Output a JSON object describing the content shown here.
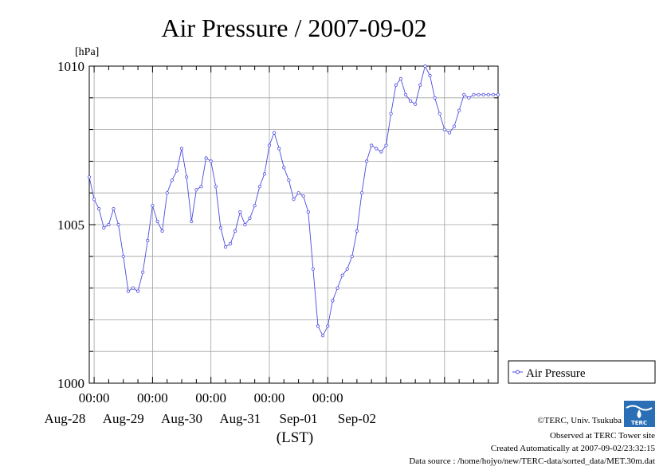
{
  "chart_data": {
    "type": "line",
    "title": "Air Pressure / 2007-09-02",
    "y_unit": "[hPa]",
    "xlabel": "(LST)",
    "ylim": [
      1000,
      1010
    ],
    "y_ticks": [
      {
        "value": 1000,
        "label": "1000"
      },
      {
        "value": 1005,
        "label": "1005"
      },
      {
        "value": 1010,
        "label": "1010"
      }
    ],
    "x_ticks": [
      "00:00",
      "00:00",
      "00:00",
      "00:00",
      "00:00"
    ],
    "x_day_labels": [
      "Aug-28",
      "Aug-29",
      "Aug-30",
      "Aug-31",
      "Sep-01",
      "Sep-02"
    ],
    "grid": true,
    "legend_position": "right",
    "series": [
      {
        "name": "Air Pressure",
        "color": "#4a4ae0",
        "x_hours_since_2007-08-27_00:00": [
          22,
          24,
          26,
          28,
          30,
          32,
          34,
          36,
          38,
          40,
          42,
          44,
          46,
          48,
          50,
          52,
          54,
          56,
          58,
          60,
          62,
          64,
          66,
          68,
          70,
          72,
          74,
          76,
          78,
          80,
          82,
          84,
          86,
          88,
          90,
          92,
          94,
          96,
          98,
          100,
          102,
          104,
          106,
          108,
          110,
          112,
          114,
          116,
          118,
          120,
          122,
          124,
          126,
          128,
          130,
          132,
          134,
          136,
          138,
          140,
          142,
          144,
          146,
          148,
          150,
          152,
          154,
          156,
          158,
          160,
          162,
          164,
          166,
          168,
          170,
          172,
          174,
          176,
          178,
          180,
          182,
          184,
          186,
          188,
          190
        ],
        "values": [
          1006.5,
          1005.8,
          1005.5,
          1004.9,
          1005.0,
          1005.5,
          1005.0,
          1004.0,
          1002.9,
          1003.0,
          1002.9,
          1003.5,
          1004.5,
          1005.6,
          1005.1,
          1004.8,
          1006.0,
          1006.4,
          1006.7,
          1007.4,
          1006.5,
          1005.1,
          1006.1,
          1006.2,
          1007.1,
          1007.0,
          1006.2,
          1004.9,
          1004.3,
          1004.4,
          1004.8,
          1005.4,
          1005.0,
          1005.2,
          1005.6,
          1006.2,
          1006.6,
          1007.5,
          1007.9,
          1007.4,
          1006.8,
          1006.4,
          1005.8,
          1006.0,
          1005.9,
          1005.4,
          1003.6,
          1001.8,
          1001.5,
          1001.8,
          1002.6,
          1003.0,
          1003.4,
          1003.6,
          1004.0,
          1004.8,
          1006.0,
          1007.0,
          1007.5,
          1007.4,
          1007.3,
          1007.5,
          1008.5,
          1009.4,
          1009.6,
          1009.1,
          1008.9,
          1008.8,
          1009.4,
          1010.0,
          1009.7,
          1009.0,
          1008.5,
          1008.0,
          1007.9,
          1008.1,
          1008.6,
          1009.1,
          1009.0,
          1009.1,
          1009.1,
          1009.1,
          1009.1,
          1009.1,
          1009.1
        ]
      }
    ]
  },
  "credits": {
    "copyright": "©TERC, Univ. Tsukuba",
    "observed": "Observed at TERC Tower site",
    "created": "Created Automatically at 2007-09-02/23:32:15",
    "source": "Data source : /home/hojyo/new/TERC-data/sorted_data/MET.30m.dat",
    "logo_text": "TERC"
  }
}
